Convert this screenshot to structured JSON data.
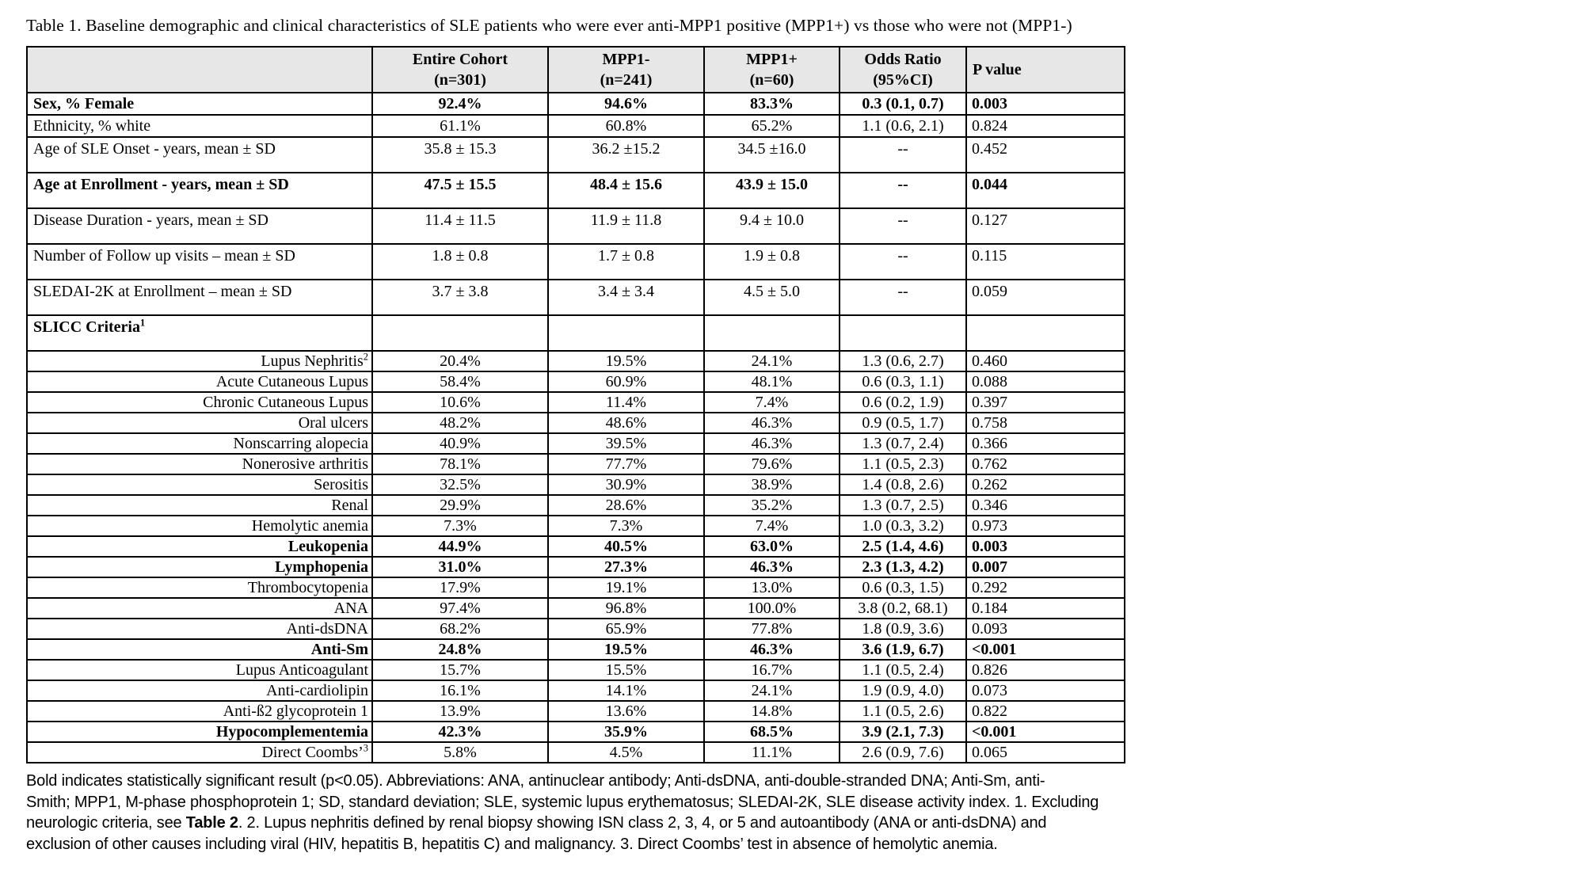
{
  "page": {
    "title": "Table 1. Baseline demographic and clinical characteristics of SLE patients who were ever anti-MPP1 positive (MPP1+) vs those who were not (MPP1-)"
  },
  "table": {
    "header": {
      "label_col": "",
      "cols": [
        {
          "line1": "Entire Cohort",
          "line2": "(n=301)"
        },
        {
          "line1": "MPP1-",
          "line2": "(n=241)"
        },
        {
          "line1": "MPP1+",
          "line2": "(n=60)"
        },
        {
          "line1": "Odds Ratio",
          "line2": "(95%CI)"
        },
        {
          "line1": "P value",
          "line2": ""
        }
      ]
    },
    "rows": [
      {
        "label": "Sex, % Female",
        "sup": "",
        "values": [
          "92.4%",
          "94.6%",
          "83.3%",
          "0.3 (0.1, 0.7)",
          "0.003"
        ],
        "bold": true,
        "align": "left",
        "size": "short"
      },
      {
        "label": "Ethnicity, % white",
        "sup": "",
        "values": [
          "61.1%",
          "60.8%",
          "65.2%",
          "1.1 (0.6, 2.1)",
          "0.824"
        ],
        "bold": false,
        "align": "left",
        "size": "short"
      },
      {
        "label": "Age of SLE Onset - years, mean ± SD",
        "sup": "",
        "values": [
          "35.8 ± 15.3",
          "36.2 ±15.2",
          "34.5 ±16.0",
          "--",
          "0.452"
        ],
        "bold": false,
        "align": "left",
        "size": "tall"
      },
      {
        "label": "Age at Enrollment - years, mean ± SD",
        "sup": "",
        "values": [
          "47.5 ± 15.5",
          "48.4 ± 15.6",
          "43.9 ± 15.0",
          "--",
          "0.044"
        ],
        "bold": true,
        "align": "left",
        "size": "tall"
      },
      {
        "label": "Disease Duration - years, mean ± SD",
        "sup": "",
        "values": [
          "11.4 ± 11.5",
          "11.9 ± 11.8",
          "9.4 ± 10.0",
          "--",
          "0.127"
        ],
        "bold": false,
        "align": "left",
        "size": "tall"
      },
      {
        "label": "Number of Follow up visits – mean ± SD",
        "sup": "",
        "values": [
          "1.8 ± 0.8",
          "1.7 ± 0.8",
          "1.9 ± 0.8",
          "--",
          "0.115"
        ],
        "bold": false,
        "align": "left",
        "size": "tall"
      },
      {
        "label": "SLEDAI-2K at Enrollment – mean ± SD",
        "sup": "",
        "values": [
          "3.7 ± 3.8",
          "3.4 ± 3.4",
          "4.5 ± 5.0",
          "--",
          "0.059"
        ],
        "bold": false,
        "align": "left",
        "size": "tall"
      },
      {
        "label": "SLICC Criteria",
        "sup": "1",
        "values": [
          "",
          "",
          "",
          "",
          ""
        ],
        "bold": true,
        "align": "left",
        "size": "tall"
      },
      {
        "label": "Lupus Nephritis",
        "sup": "2",
        "values": [
          "20.4%",
          "19.5%",
          "24.1%",
          "1.3 (0.6, 2.7)",
          "0.460"
        ],
        "bold": false,
        "align": "right",
        "size": "compact"
      },
      {
        "label": "Acute Cutaneous Lupus",
        "sup": "",
        "values": [
          "58.4%",
          "60.9%",
          "48.1%",
          "0.6 (0.3, 1.1)",
          "0.088"
        ],
        "bold": false,
        "align": "right",
        "size": "compact"
      },
      {
        "label": "Chronic Cutaneous Lupus",
        "sup": "",
        "values": [
          "10.6%",
          "11.4%",
          "7.4%",
          "0.6 (0.2, 1.9)",
          "0.397"
        ],
        "bold": false,
        "align": "right",
        "size": "compact"
      },
      {
        "label": "Oral ulcers",
        "sup": "",
        "values": [
          "48.2%",
          "48.6%",
          "46.3%",
          "0.9 (0.5, 1.7)",
          "0.758"
        ],
        "bold": false,
        "align": "right",
        "size": "compact"
      },
      {
        "label": "Nonscarring alopecia",
        "sup": "",
        "values": [
          "40.9%",
          "39.5%",
          "46.3%",
          "1.3 (0.7, 2.4)",
          "0.366"
        ],
        "bold": false,
        "align": "right",
        "size": "compact"
      },
      {
        "label": "Nonerosive arthritis",
        "sup": "",
        "values": [
          "78.1%",
          "77.7%",
          "79.6%",
          "1.1 (0.5, 2.3)",
          "0.762"
        ],
        "bold": false,
        "align": "right",
        "size": "compact"
      },
      {
        "label": "Serositis",
        "sup": "",
        "values": [
          "32.5%",
          "30.9%",
          "38.9%",
          "1.4 (0.8, 2.6)",
          "0.262"
        ],
        "bold": false,
        "align": "right",
        "size": "compact"
      },
      {
        "label": "Renal",
        "sup": "",
        "values": [
          "29.9%",
          "28.6%",
          "35.2%",
          "1.3 (0.7, 2.5)",
          "0.346"
        ],
        "bold": false,
        "align": "right",
        "size": "compact"
      },
      {
        "label": "Hemolytic anemia",
        "sup": "",
        "values": [
          "7.3%",
          "7.3%",
          "7.4%",
          "1.0 (0.3, 3.2)",
          "0.973"
        ],
        "bold": false,
        "align": "right",
        "size": "compact"
      },
      {
        "label": "Leukopenia",
        "sup": "",
        "values": [
          "44.9%",
          "40.5%",
          "63.0%",
          "2.5 (1.4, 4.6)",
          "0.003"
        ],
        "bold": true,
        "align": "right",
        "size": "compact"
      },
      {
        "label": "Lymphopenia",
        "sup": "",
        "values": [
          "31.0%",
          "27.3%",
          "46.3%",
          "2.3 (1.3, 4.2)",
          "0.007"
        ],
        "bold": true,
        "align": "right",
        "size": "compact"
      },
      {
        "label": "Thrombocytopenia",
        "sup": "",
        "values": [
          "17.9%",
          "19.1%",
          "13.0%",
          "0.6 (0.3, 1.5)",
          "0.292"
        ],
        "bold": false,
        "align": "right",
        "size": "compact"
      },
      {
        "label": "ANA",
        "sup": "",
        "values": [
          "97.4%",
          "96.8%",
          "100.0%",
          "3.8 (0.2, 68.1)",
          "0.184"
        ],
        "bold": false,
        "align": "right",
        "size": "compact"
      },
      {
        "label": "Anti-dsDNA",
        "sup": "",
        "values": [
          "68.2%",
          "65.9%",
          "77.8%",
          "1.8 (0.9, 3.6)",
          "0.093"
        ],
        "bold": false,
        "align": "right",
        "size": "compact"
      },
      {
        "label": "Anti-Sm",
        "sup": "",
        "values": [
          "24.8%",
          "19.5%",
          "46.3%",
          "3.6 (1.9, 6.7)",
          "<0.001"
        ],
        "bold": true,
        "align": "right",
        "size": "compact"
      },
      {
        "label": "Lupus Anticoagulant",
        "sup": "",
        "values": [
          "15.7%",
          "15.5%",
          "16.7%",
          "1.1 (0.5, 2.4)",
          "0.826"
        ],
        "bold": false,
        "align": "right",
        "size": "compact"
      },
      {
        "label": "Anti-cardiolipin",
        "sup": "",
        "values": [
          "16.1%",
          "14.1%",
          "24.1%",
          "1.9 (0.9, 4.0)",
          "0.073"
        ],
        "bold": false,
        "align": "right",
        "size": "compact"
      },
      {
        "label": "Anti-ß2 glycoprotein 1",
        "sup": "",
        "values": [
          "13.9%",
          "13.6%",
          "14.8%",
          "1.1 (0.5, 2.6)",
          "0.822"
        ],
        "bold": false,
        "align": "right",
        "size": "compact"
      },
      {
        "label": "Hypocomplementemia",
        "sup": "",
        "values": [
          "42.3%",
          "35.9%",
          "68.5%",
          "3.9 (2.1, 7.3)",
          "<0.001"
        ],
        "bold": true,
        "align": "right",
        "size": "compact"
      },
      {
        "label": "Direct Coombs’",
        "sup": "3",
        "values": [
          "5.8%",
          "4.5%",
          "11.1%",
          "2.6 (0.9, 7.6)",
          "0.065"
        ],
        "bold": false,
        "align": "right",
        "size": "compact"
      }
    ]
  },
  "footnote": {
    "lines": [
      [
        {
          "t": "Bold indicates statistically significant result (p<0.05). Abbreviations: ANA, antinuclear antibody; Anti-dsDNA, anti-double-stranded DNA; Anti-Sm, anti-",
          "b": false
        }
      ],
      [
        {
          "t": "Smith; MPP1, M-phase phosphoprotein 1; SD, standard deviation; SLE, systemic lupus erythematosus; SLEDAI-2K, SLE disease activity index. 1. Excluding",
          "b": false
        }
      ],
      [
        {
          "t": "neurologic criteria, see ",
          "b": false
        },
        {
          "t": "Table 2",
          "b": true
        },
        {
          "t": ". 2. Lupus nephritis defined by renal biopsy showing ISN class 2, 3, 4, or 5 and autoantibody (ANA or anti-dsDNA) and",
          "b": false
        }
      ],
      [
        {
          "t": "exclusion of other causes including viral (HIV, hepatitis B, hepatitis C) and malignancy. 3. Direct Coombs’ test in absence of hemolytic anemia.",
          "b": false
        }
      ]
    ]
  }
}
